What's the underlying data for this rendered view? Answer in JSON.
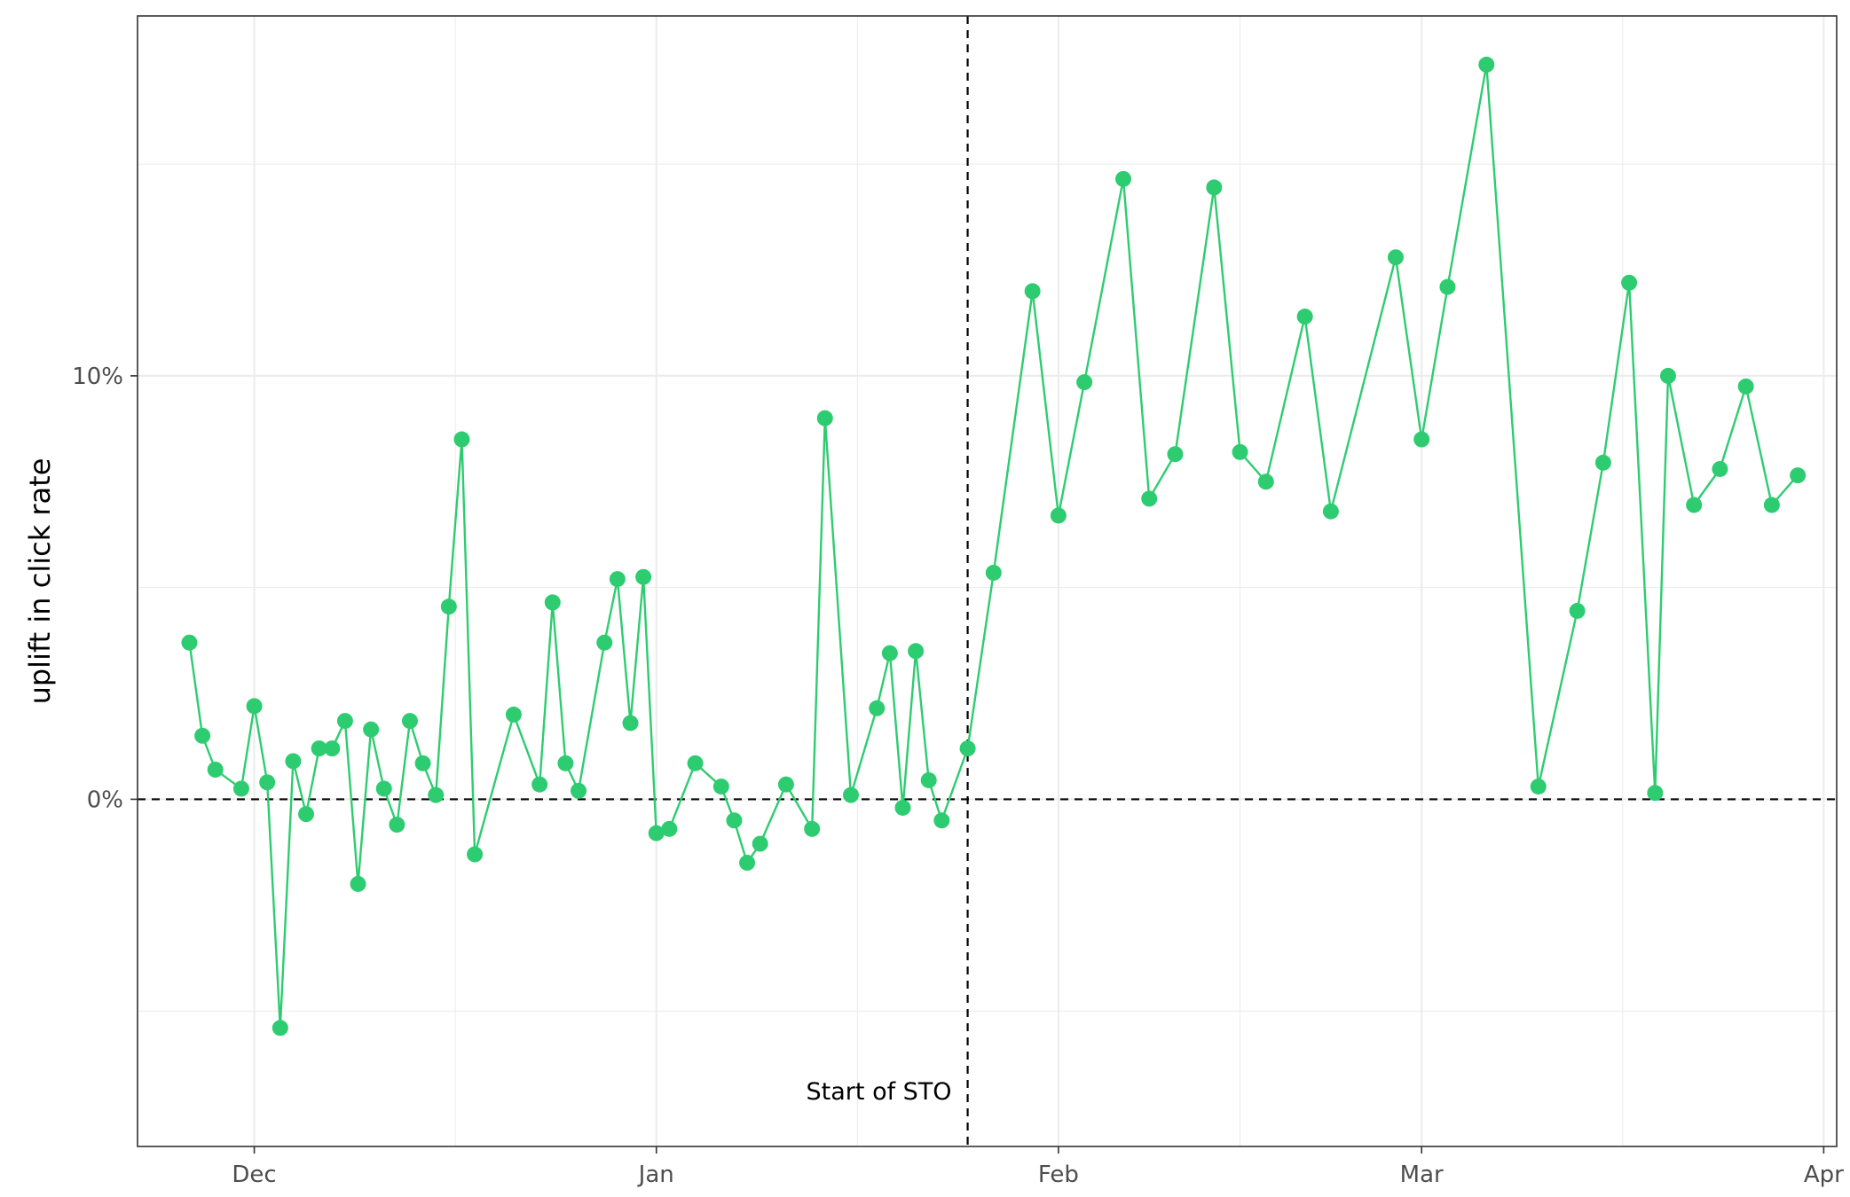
{
  "chart_data": {
    "type": "line",
    "title": "",
    "xlabel": "",
    "ylabel": "uplift in click rate",
    "x_type": "date",
    "xlim": [
      "2022-11-22",
      "2023-04-02"
    ],
    "ylim": [
      -8.2,
      18.5
    ],
    "x_ticks": [
      {
        "date": "2022-12-01",
        "label": "Dec"
      },
      {
        "date": "2023-01-01",
        "label": "Jan"
      },
      {
        "date": "2023-02-01",
        "label": "Feb"
      },
      {
        "date": "2023-03-01",
        "label": "Mar"
      },
      {
        "date": "2023-04-01",
        "label": "Apr"
      }
    ],
    "y_ticks": [
      {
        "value": 0,
        "label": "0%"
      },
      {
        "value": 10,
        "label": "10%"
      }
    ],
    "grid": true,
    "colors": {
      "series": "#2ecc71",
      "reference": "#000000",
      "grid": "#ebebeb",
      "panel_border": "#333333"
    },
    "annotations": {
      "hline": {
        "value": 0
      },
      "vline": {
        "date": "2023-01-25",
        "label": "Start of STO"
      }
    },
    "series": [
      {
        "points": [
          {
            "x": "2022-11-26",
            "y": 3.7
          },
          {
            "x": "2022-11-27",
            "y": 1.5
          },
          {
            "x": "2022-11-28",
            "y": 0.7
          },
          {
            "x": "2022-11-30",
            "y": 0.25
          },
          {
            "x": "2022-12-01",
            "y": 2.2
          },
          {
            "x": "2022-12-02",
            "y": 0.4
          },
          {
            "x": "2022-12-03",
            "y": -5.4
          },
          {
            "x": "2022-12-04",
            "y": 0.9
          },
          {
            "x": "2022-12-05",
            "y": -0.35
          },
          {
            "x": "2022-12-06",
            "y": 1.2
          },
          {
            "x": "2022-12-07",
            "y": 1.2
          },
          {
            "x": "2022-12-08",
            "y": 1.85
          },
          {
            "x": "2022-12-09",
            "y": -2.0
          },
          {
            "x": "2022-12-10",
            "y": 1.65
          },
          {
            "x": "2022-12-11",
            "y": 0.25
          },
          {
            "x": "2022-12-12",
            "y": -0.6
          },
          {
            "x": "2022-12-13",
            "y": 1.85
          },
          {
            "x": "2022-12-14",
            "y": 0.85
          },
          {
            "x": "2022-12-15",
            "y": 0.1
          },
          {
            "x": "2022-12-16",
            "y": 4.55
          },
          {
            "x": "2022-12-17",
            "y": 8.5
          },
          {
            "x": "2022-12-18",
            "y": -1.3
          },
          {
            "x": "2022-12-21",
            "y": 2.0
          },
          {
            "x": "2022-12-23",
            "y": 0.35
          },
          {
            "x": "2022-12-24",
            "y": 4.65
          },
          {
            "x": "2022-12-25",
            "y": 0.85
          },
          {
            "x": "2022-12-26",
            "y": 0.2
          },
          {
            "x": "2022-12-28",
            "y": 3.7
          },
          {
            "x": "2022-12-29",
            "y": 5.2
          },
          {
            "x": "2022-12-30",
            "y": 1.8
          },
          {
            "x": "2022-12-31",
            "y": 5.25
          },
          {
            "x": "2023-01-01",
            "y": -0.8
          },
          {
            "x": "2023-01-02",
            "y": -0.7
          },
          {
            "x": "2023-01-04",
            "y": 0.85
          },
          {
            "x": "2023-01-06",
            "y": 0.3
          },
          {
            "x": "2023-01-07",
            "y": -0.5
          },
          {
            "x": "2023-01-08",
            "y": -1.5
          },
          {
            "x": "2023-01-09",
            "y": -1.05
          },
          {
            "x": "2023-01-11",
            "y": 0.35
          },
          {
            "x": "2023-01-13",
            "y": -0.7
          },
          {
            "x": "2023-01-14",
            "y": 9.0
          },
          {
            "x": "2023-01-16",
            "y": 0.1
          },
          {
            "x": "2023-01-18",
            "y": 2.15
          },
          {
            "x": "2023-01-19",
            "y": 3.45
          },
          {
            "x": "2023-01-20",
            "y": -0.2
          },
          {
            "x": "2023-01-21",
            "y": 3.5
          },
          {
            "x": "2023-01-22",
            "y": 0.45
          },
          {
            "x": "2023-01-23",
            "y": -0.5
          },
          {
            "x": "2023-01-25",
            "y": 1.2
          },
          {
            "x": "2023-01-27",
            "y": 5.35
          },
          {
            "x": "2023-01-30",
            "y": 12.0
          },
          {
            "x": "2023-02-01",
            "y": 6.7
          },
          {
            "x": "2023-02-03",
            "y": 9.85
          },
          {
            "x": "2023-02-06",
            "y": 14.65
          },
          {
            "x": "2023-02-08",
            "y": 7.1
          },
          {
            "x": "2023-02-10",
            "y": 8.15
          },
          {
            "x": "2023-02-13",
            "y": 14.45
          },
          {
            "x": "2023-02-15",
            "y": 8.2
          },
          {
            "x": "2023-02-17",
            "y": 7.5
          },
          {
            "x": "2023-02-20",
            "y": 11.4
          },
          {
            "x": "2023-02-22",
            "y": 6.8
          },
          {
            "x": "2023-02-27",
            "y": 12.8
          },
          {
            "x": "2023-03-01",
            "y": 8.5
          },
          {
            "x": "2023-03-03",
            "y": 12.1
          },
          {
            "x": "2023-03-06",
            "y": 17.35
          },
          {
            "x": "2023-03-10",
            "y": 0.3
          },
          {
            "x": "2023-03-13",
            "y": 4.45
          },
          {
            "x": "2023-03-15",
            "y": 7.95
          },
          {
            "x": "2023-03-17",
            "y": 12.2
          },
          {
            "x": "2023-03-19",
            "y": 0.15
          },
          {
            "x": "2023-03-20",
            "y": 10.0
          },
          {
            "x": "2023-03-22",
            "y": 6.95
          },
          {
            "x": "2023-03-24",
            "y": 7.8
          },
          {
            "x": "2023-03-26",
            "y": 9.75
          },
          {
            "x": "2023-03-28",
            "y": 6.95
          },
          {
            "x": "2023-03-30",
            "y": 7.65
          }
        ]
      }
    ]
  }
}
